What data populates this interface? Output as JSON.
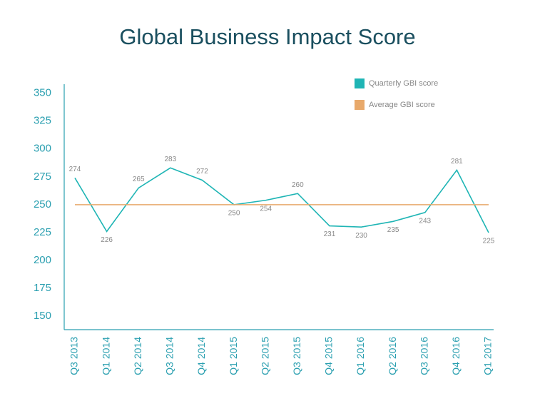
{
  "chart_data": {
    "type": "line",
    "title": "Global Business Impact Score",
    "categories": [
      "Q3 2013",
      "Q1 2014",
      "Q2 2014",
      "Q3 2014",
      "Q4 2014",
      "Q1 2015",
      "Q2 2015",
      "Q3 2015",
      "Q4 2015",
      "Q1 2016",
      "Q2 2016",
      "Q3 2016",
      "Q4 2016",
      "Q1 2017"
    ],
    "series": [
      {
        "name": "Quarterly GBI score",
        "color": "#1fb5b5",
        "values": [
          274,
          226,
          265,
          283,
          272,
          250,
          254,
          260,
          231,
          230,
          235,
          243,
          281,
          225
        ],
        "data_labels": true
      },
      {
        "name": "Average GBI score",
        "color": "#e8a96b",
        "values": [
          250,
          250,
          250,
          250,
          250,
          250,
          250,
          250,
          250,
          250,
          250,
          250,
          250,
          250
        ]
      }
    ],
    "ylim": [
      138,
      358
    ],
    "yticks": [
      150,
      175,
      200,
      225,
      250,
      275,
      300,
      325,
      350
    ],
    "legend": "top-right"
  }
}
